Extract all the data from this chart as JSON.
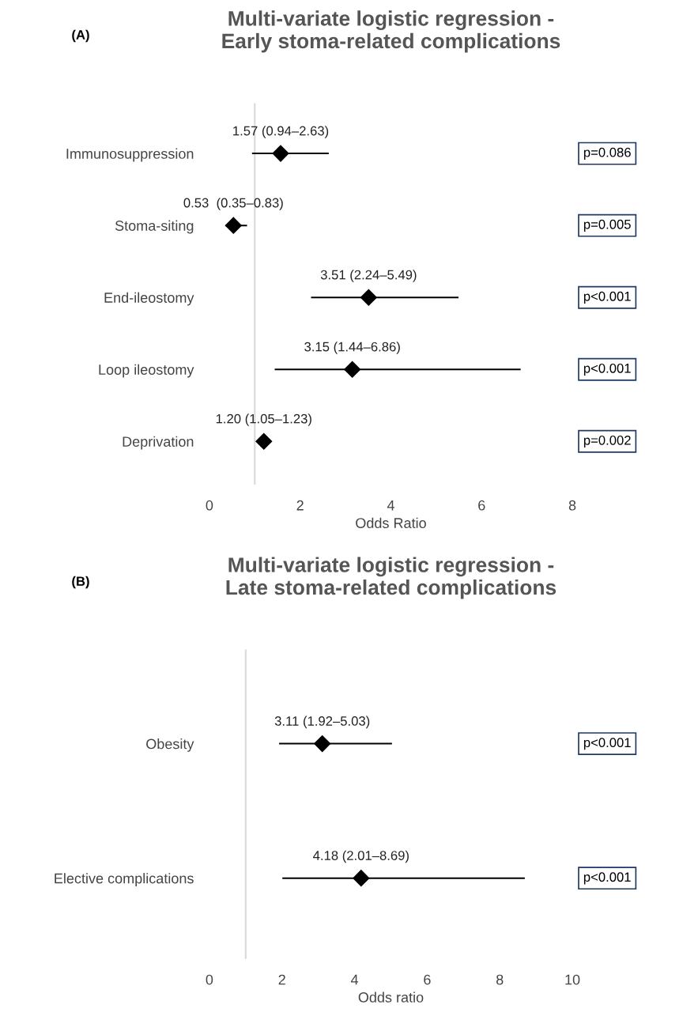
{
  "chart_data": [
    {
      "type": "bar",
      "orientation": "horizontal",
      "title": "Multi-variate logistic regression -\nEarly stoma-related complications",
      "xlabel": "Odds Ratio",
      "categories": [
        "Immunosuppression",
        "Stoma-siting",
        "End-ileostomy",
        "Loop ileostomy",
        "Deprivation"
      ],
      "series": [
        {
          "type": "bar",
          "color": "#000000",
          "base": [
            0.94,
            0.35,
            2.24,
            1.44,
            null
          ],
          "values": [
            1.69,
            0.48,
            3.25,
            5.42,
            null
          ]
        },
        {
          "type": "scatter",
          "color": "#000000",
          "marker": "diamond",
          "x": [
            "Immunosuppression",
            "Stoma-siting",
            "End-ileostomy",
            "Loop ileostomy",
            "Deprivation"
          ],
          "values": [
            1.57,
            0.53,
            3.51,
            3.15,
            1.2
          ],
          "value_labels": [
            "1.57 (0.94–2.63)",
            "0.53  (0.35–0.83)",
            "3.51 (2.24–5.49)",
            "3.15 (1.44–6.86)",
            "1.20 (1.05–1.23)"
          ]
        }
      ],
      "xlim": [
        0,
        8
      ],
      "xticks": [
        0,
        2,
        4,
        6,
        8
      ],
      "ref_lines": [
        {
          "axis": "x",
          "value": 1,
          "color": "#d9d9d9"
        }
      ],
      "annotations": [
        "(A)",
        "p=0.086",
        "p=0.005",
        "p<0.001",
        "p<0.001",
        "p=0.002"
      ]
    },
    {
      "type": "bar",
      "orientation": "horizontal",
      "title": "Multi-variate logistic regression -\nLate stoma-related complications",
      "xlabel": "Odds ratio",
      "categories": [
        "Obesity",
        "Elective complications"
      ],
      "series": [
        {
          "type": "bar",
          "color": "#000000",
          "base": [
            1.92,
            2.01
          ],
          "values": [
            3.11,
            6.68
          ]
        },
        {
          "type": "scatter",
          "color": "#000000",
          "marker": "diamond",
          "x": [
            "Obesity",
            "Elective complications"
          ],
          "values": [
            3.11,
            4.18
          ],
          "value_labels": [
            "3.11 (1.92–5.03)",
            "4.18 (2.01–8.69)"
          ]
        }
      ],
      "xlim": [
        0,
        10
      ],
      "xticks": [
        0,
        2,
        4,
        6,
        8,
        10
      ],
      "ref_lines": [
        {
          "axis": "x",
          "value": 1,
          "color": "#d9d9d9"
        }
      ],
      "annotations": [
        "(B)",
        "p<0.001",
        "p<0.001"
      ]
    }
  ]
}
